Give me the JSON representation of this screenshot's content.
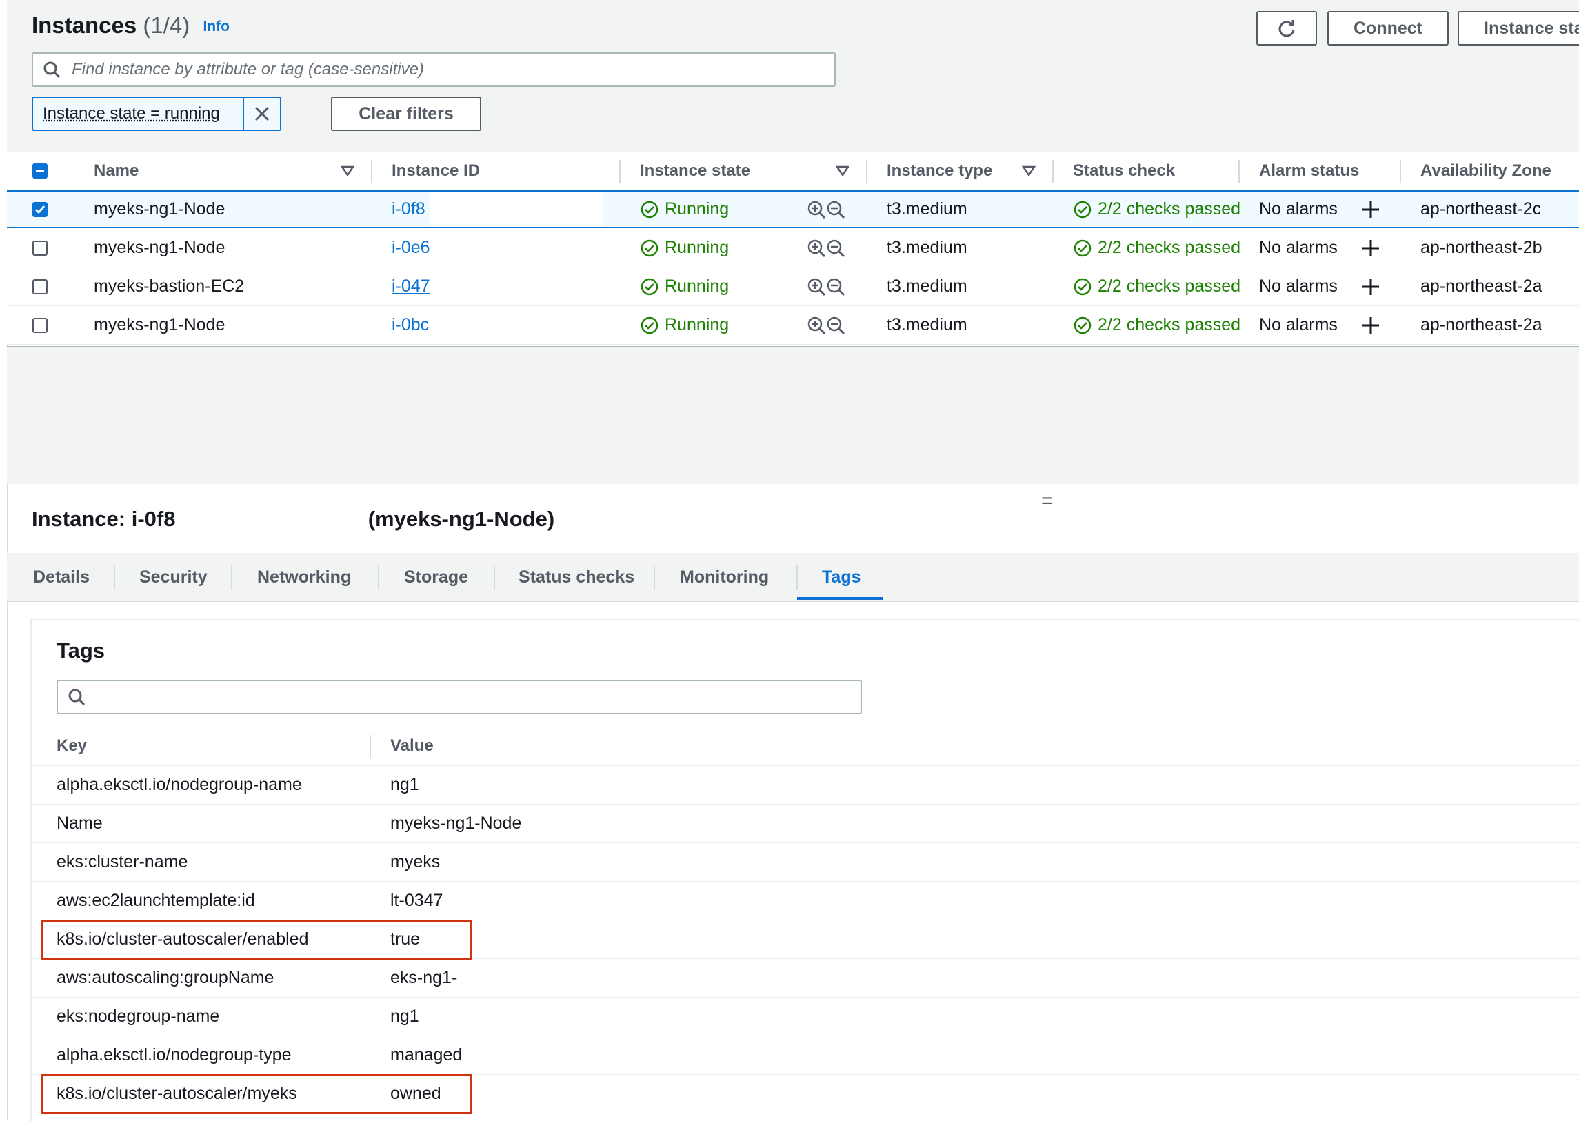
{
  "header": {
    "title": "Instances",
    "count": "(1/4)",
    "info_label": "Info",
    "refresh_label": "",
    "connect_label": "Connect",
    "instance_state_label": "Instance sta"
  },
  "search": {
    "placeholder": "Find instance by attribute or tag (case-sensitive)"
  },
  "filter": {
    "chip_label": "Instance state = running",
    "clear_filters_label": "Clear filters"
  },
  "table": {
    "columns": [
      "Name",
      "Instance ID",
      "Instance state",
      "Instance type",
      "Status check",
      "Alarm status",
      "Availability Zone"
    ],
    "rows": [
      {
        "selected": true,
        "name": "myeks-ng1-Node",
        "instance_id": "i-0f8",
        "state": "Running",
        "type": "t3.medium",
        "status_check": "2/2 checks passed",
        "alarm": "No alarms",
        "az": "ap-northeast-2c"
      },
      {
        "selected": false,
        "name": "myeks-ng1-Node",
        "instance_id": "i-0e6",
        "state": "Running",
        "type": "t3.medium",
        "status_check": "2/2 checks passed",
        "alarm": "No alarms",
        "az": "ap-northeast-2b"
      },
      {
        "selected": false,
        "name": "myeks-bastion-EC2",
        "instance_id": "i-047",
        "state": "Running",
        "type": "t3.medium",
        "status_check": "2/2 checks passed",
        "alarm": "No alarms",
        "az": "ap-northeast-2a"
      },
      {
        "selected": false,
        "name": "myeks-ng1-Node",
        "instance_id": "i-0bc",
        "state": "Running",
        "type": "t3.medium",
        "status_check": "2/2 checks passed",
        "alarm": "No alarms",
        "az": "ap-northeast-2a"
      }
    ]
  },
  "split_handle": "=",
  "detail": {
    "title_prefix": "Instance: i-0f8",
    "title_suffix": "(myeks-ng1-Node)",
    "tabs": [
      "Details",
      "Security",
      "Networking",
      "Storage",
      "Status checks",
      "Monitoring",
      "Tags"
    ],
    "active_tab": "Tags"
  },
  "tags": {
    "title": "Tags",
    "search_placeholder": "",
    "key_header": "Key",
    "value_header": "Value",
    "rows": [
      {
        "key": "alpha.eksctl.io/nodegroup-name",
        "value": "ng1",
        "highlight": false
      },
      {
        "key": "Name",
        "value": "myeks-ng1-Node",
        "highlight": false
      },
      {
        "key": "eks:cluster-name",
        "value": "myeks",
        "highlight": false
      },
      {
        "key": "aws:ec2launchtemplate:id",
        "value": "lt-0347",
        "highlight": false
      },
      {
        "key": "k8s.io/cluster-autoscaler/enabled",
        "value": "true",
        "highlight": true
      },
      {
        "key": "aws:autoscaling:groupName",
        "value": "eks-ng1-",
        "highlight": false
      },
      {
        "key": "eks:nodegroup-name",
        "value": "ng1",
        "highlight": false
      },
      {
        "key": "alpha.eksctl.io/nodegroup-type",
        "value": "managed",
        "highlight": false
      },
      {
        "key": "k8s.io/cluster-autoscaler/myeks",
        "value": "owned",
        "highlight": true
      }
    ]
  },
  "colors": {
    "accent": "#0972d3",
    "success": "#1d8102",
    "highlight": "#d13212"
  }
}
